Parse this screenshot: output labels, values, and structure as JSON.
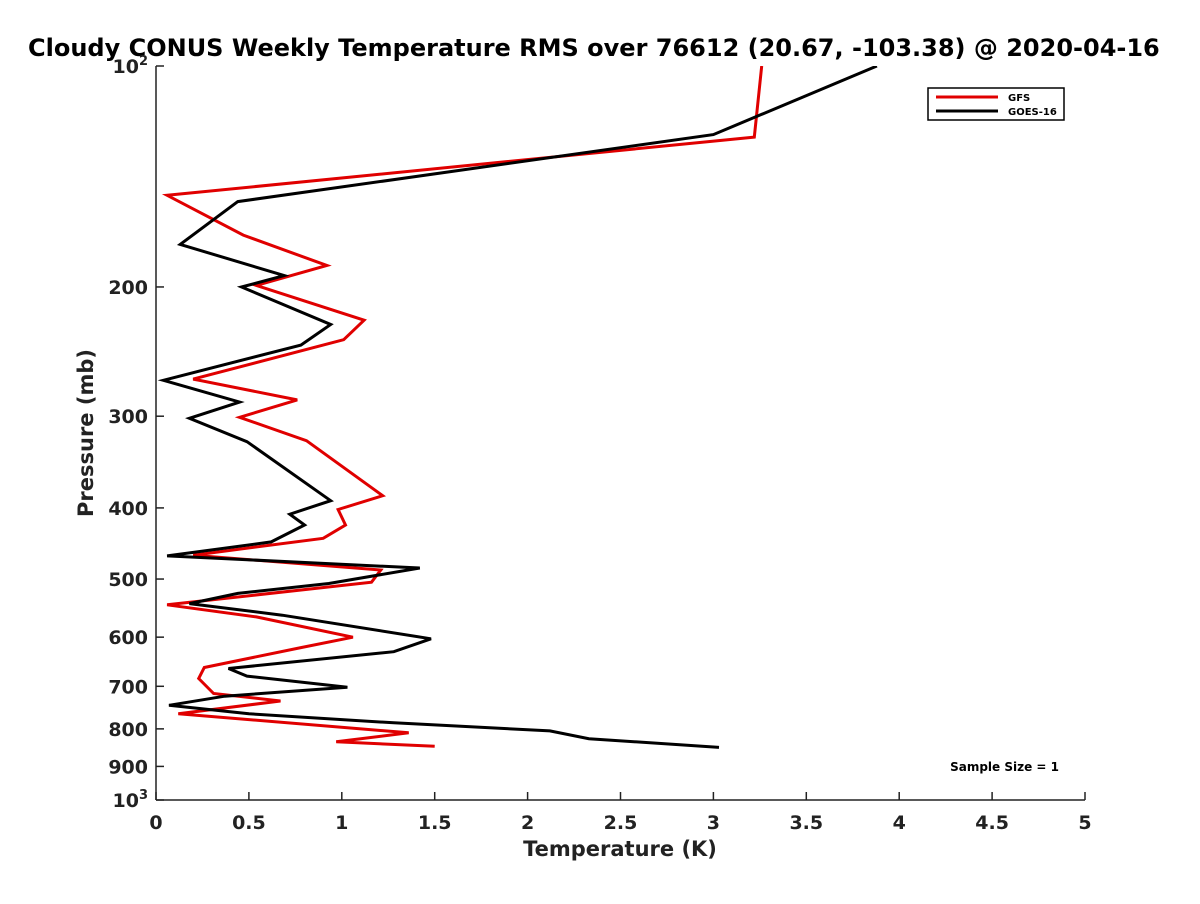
{
  "chart_data": {
    "type": "line",
    "title": "Cloudy CONUS Weekly Temperature RMS over 76612 (20.67, -103.38) @ 2020-04-16",
    "xlabel": "Temperature (K)",
    "ylabel": "Pressure (mb)",
    "xlim": [
      0,
      5
    ],
    "ylim": [
      100,
      1000
    ],
    "y_scale": "log",
    "y_reversed": true,
    "x_ticks": [
      "0",
      "0.5",
      "1",
      "1.5",
      "2",
      "2.5",
      "3",
      "3.5",
      "4",
      "4.5",
      "5"
    ],
    "y_ticks": [
      {
        "value": 100,
        "base": "10",
        "exp": "2"
      },
      {
        "value": 200,
        "label": "200"
      },
      {
        "value": 300,
        "label": "300"
      },
      {
        "value": 400,
        "label": "400"
      },
      {
        "value": 500,
        "label": "500"
      },
      {
        "value": 600,
        "label": "600"
      },
      {
        "value": 700,
        "label": "700"
      },
      {
        "value": 800,
        "label": "800"
      },
      {
        "value": 900,
        "label": "900"
      },
      {
        "value": 1000,
        "base": "10",
        "exp": "3"
      }
    ],
    "grid": false,
    "legend_position": "top-right",
    "annotation": "Sample Size = 1",
    "series": [
      {
        "name": "GFS",
        "color": "#e00000",
        "points": [
          [
            3.26,
            100
          ],
          [
            3.22,
            125
          ],
          [
            0.06,
            150
          ],
          [
            0.47,
            170
          ],
          [
            0.92,
            187
          ],
          [
            0.54,
            199
          ],
          [
            1.12,
            222
          ],
          [
            1.01,
            236
          ],
          [
            0.2,
            267
          ],
          [
            0.76,
            285
          ],
          [
            0.45,
            301
          ],
          [
            0.81,
            324
          ],
          [
            1.22,
            385
          ],
          [
            0.98,
            402
          ],
          [
            1.02,
            422
          ],
          [
            0.9,
            440
          ],
          [
            0.2,
            464
          ],
          [
            1.21,
            486
          ],
          [
            1.16,
            505
          ],
          [
            0.06,
            542
          ],
          [
            0.54,
            563
          ],
          [
            1.06,
            600
          ],
          [
            0.78,
            620
          ],
          [
            0.26,
            660
          ],
          [
            0.23,
            683
          ],
          [
            0.31,
            716
          ],
          [
            0.67,
            733
          ],
          [
            0.12,
            763
          ],
          [
            1.36,
            810
          ],
          [
            0.97,
            833
          ],
          [
            1.5,
            845
          ]
        ]
      },
      {
        "name": "GOES-16",
        "color": "#000000",
        "points": [
          [
            3.88,
            100
          ],
          [
            3.0,
            124
          ],
          [
            0.44,
            153
          ],
          [
            0.13,
            175
          ],
          [
            0.69,
            193
          ],
          [
            0.46,
            200
          ],
          [
            0.94,
            225
          ],
          [
            0.78,
            240
          ],
          [
            0.04,
            268
          ],
          [
            0.45,
            287
          ],
          [
            0.18,
            302
          ],
          [
            0.49,
            325
          ],
          [
            0.94,
            391
          ],
          [
            0.72,
            408
          ],
          [
            0.8,
            422
          ],
          [
            0.62,
            445
          ],
          [
            0.06,
            465
          ],
          [
            1.42,
            483
          ],
          [
            0.93,
            507
          ],
          [
            0.44,
            523
          ],
          [
            0.18,
            540
          ],
          [
            0.68,
            560
          ],
          [
            1.48,
            603
          ],
          [
            1.28,
            628
          ],
          [
            0.39,
            662
          ],
          [
            0.49,
            678
          ],
          [
            1.03,
            702
          ],
          [
            0.37,
            722
          ],
          [
            0.07,
            743
          ],
          [
            0.5,
            763
          ],
          [
            1.28,
            785
          ],
          [
            2.12,
            805
          ],
          [
            2.33,
            825
          ],
          [
            3.03,
            848
          ]
        ]
      }
    ]
  }
}
